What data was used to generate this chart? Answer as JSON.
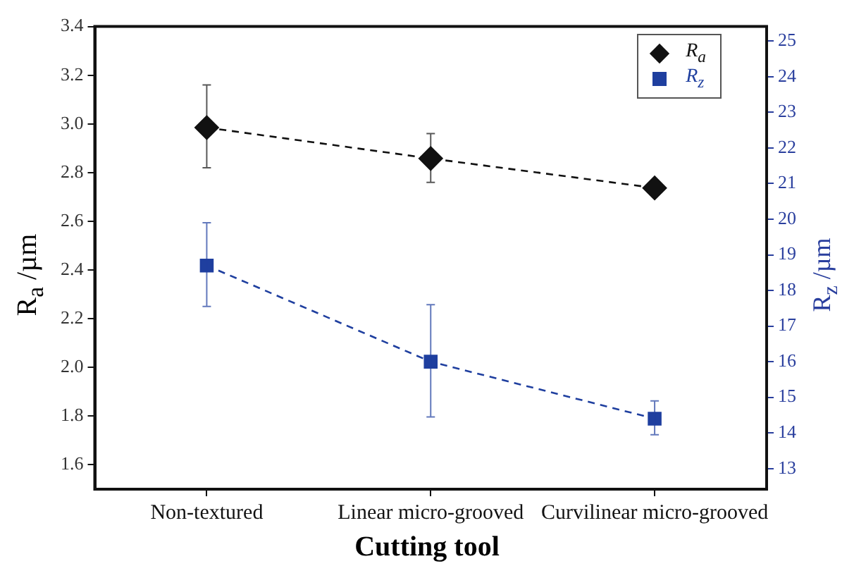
{
  "chart_data": {
    "type": "line",
    "xlabel": "Cutting tool",
    "ylabel": "R$_{a}$ /µm",
    "y2label": "R$_{z}$ /µm",
    "categories": [
      "Non-textured",
      "Linear micro-grooved",
      "Curvilinear micro-grooved"
    ],
    "series": [
      {
        "name": "R$_{a}$",
        "color": "#111111",
        "values": [
          2.985,
          2.858,
          2.737
        ],
        "errors": [
          [
            2.82,
            3.16
          ],
          [
            2.76,
            2.96
          ],
          null
        ],
        "marker": "diamond",
        "line_style": "dashed"
      },
      {
        "name": "R$_{z}$",
        "color": "#1f3f9f",
        "values": [
          18.7,
          16.0,
          14.4
        ],
        "errors": [
          [
            17.55,
            19.9
          ],
          [
            14.45,
            17.6
          ],
          [
            13.95,
            14.9
          ]
        ],
        "marker": "square",
        "line_style": "dashed",
        "axis": "y2"
      }
    ],
    "ylim": [
      1.5,
      3.4
    ],
    "yticks": [
      1.6,
      1.8,
      {
        "value": 2,
        "label": "2.0"
      },
      2.2,
      2.4,
      2.6,
      2.8,
      {
        "value": 3,
        "label": "3.0"
      },
      3.2,
      3.4
    ],
    "y2lim": [
      12.42,
      25.41
    ],
    "y2ticks": [
      13,
      14,
      15,
      16,
      17,
      18,
      19,
      20,
      21,
      22,
      23,
      24,
      25
    ],
    "grid": false,
    "legend": "top right"
  }
}
